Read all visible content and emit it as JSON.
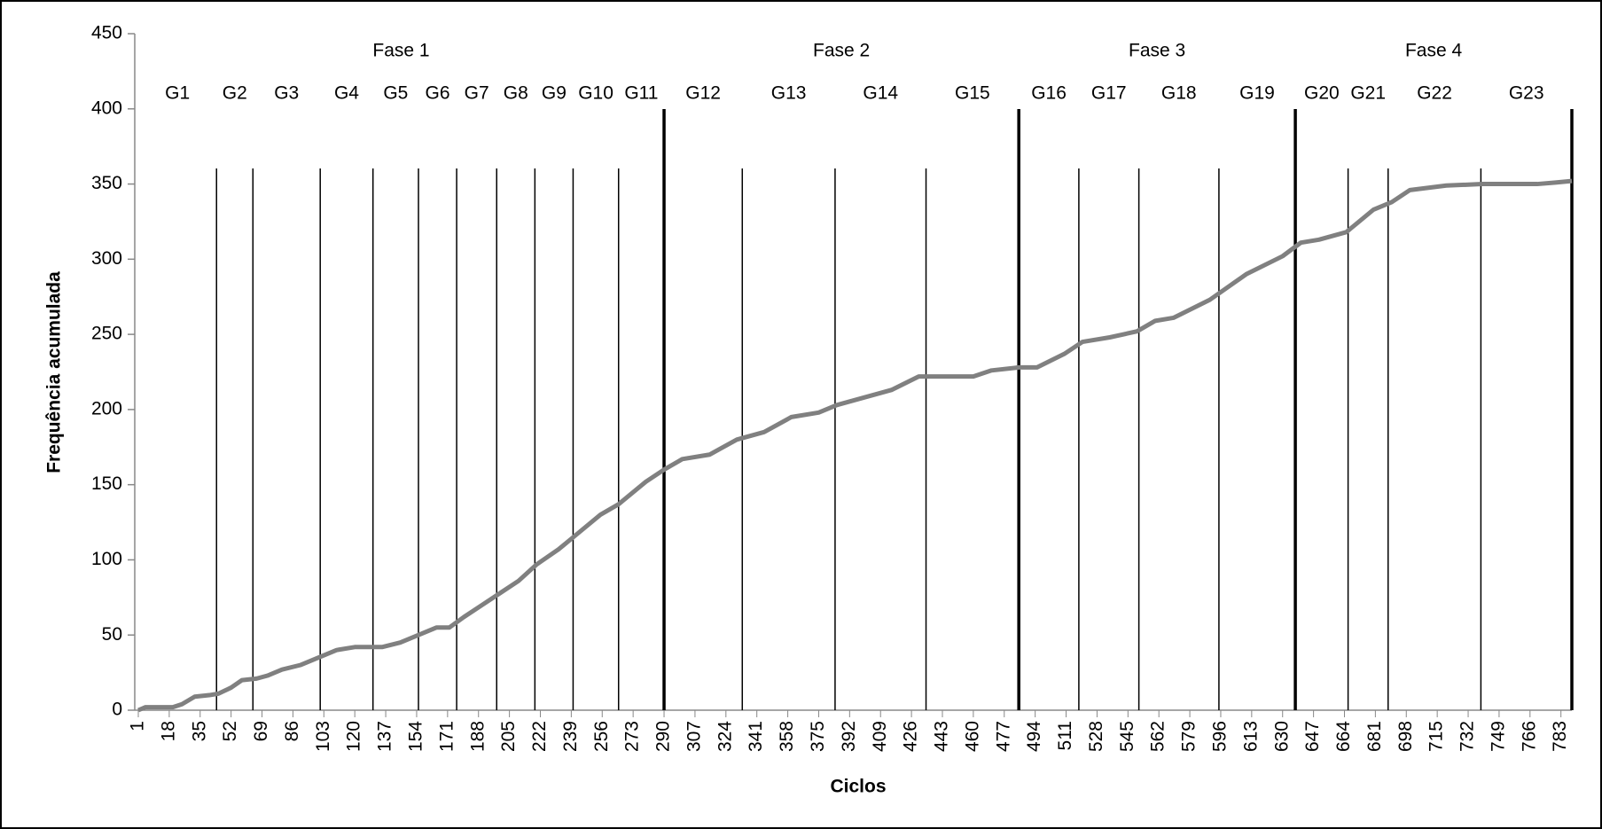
{
  "chart_data": {
    "type": "line",
    "y_label": "Frequência acumulada",
    "x_label": "Ciclos",
    "color": "#808080",
    "x": [
      1,
      5,
      20,
      25,
      32,
      40,
      45,
      52,
      58,
      66,
      72,
      80,
      90,
      100,
      110,
      120,
      135,
      145,
      155,
      165,
      172,
      180,
      190,
      200,
      210,
      220,
      232,
      242,
      255,
      265,
      280,
      290,
      300,
      315,
      330,
      345,
      360,
      375,
      385,
      400,
      415,
      430,
      445,
      460,
      470,
      485,
      495,
      510,
      520,
      535,
      550,
      560,
      570,
      590,
      610,
      630,
      640,
      650,
      665,
      680,
      690,
      700,
      720,
      740,
      770,
      780,
      789
    ],
    "values": [
      0,
      2,
      2,
      4,
      9,
      10,
      11,
      15,
      20,
      21,
      23,
      27,
      30,
      35,
      40,
      42,
      42,
      45,
      50,
      55,
      55,
      62,
      70,
      78,
      86,
      97,
      107,
      117,
      130,
      137,
      152,
      160,
      167,
      170,
      180,
      185,
      195,
      198,
      203,
      208,
      213,
      222,
      222,
      222,
      226,
      228,
      228,
      237,
      245,
      248,
      252,
      259,
      261,
      273,
      290,
      302,
      311,
      313,
      318,
      333,
      338,
      346,
      349,
      350,
      350,
      351,
      352
    ],
    "xlim": [
      1,
      789
    ],
    "xticks": [
      1,
      18,
      35,
      52,
      69,
      86,
      103,
      120,
      137,
      154,
      171,
      188,
      205,
      222,
      239,
      256,
      273,
      290,
      307,
      324,
      341,
      358,
      375,
      392,
      409,
      426,
      443,
      460,
      477,
      494,
      511,
      528,
      545,
      562,
      579,
      596,
      613,
      630,
      647,
      664,
      681,
      698,
      715,
      732,
      749,
      766,
      783
    ],
    "ylim": [
      0,
      450
    ],
    "yticks": [
      0,
      50,
      100,
      150,
      200,
      250,
      300,
      350,
      400,
      450
    ],
    "groups": [
      {
        "label": "G1",
        "end": 44
      },
      {
        "label": "G2",
        "end": 64
      },
      {
        "label": "G3",
        "end": 101
      },
      {
        "label": "G4",
        "end": 130
      },
      {
        "label": "G5",
        "end": 155
      },
      {
        "label": "G6",
        "end": 176
      },
      {
        "label": "G7",
        "end": 198
      },
      {
        "label": "G8",
        "end": 219
      },
      {
        "label": "G9",
        "end": 240
      },
      {
        "label": "G10",
        "end": 265
      },
      {
        "label": "G11",
        "end": 290
      },
      {
        "label": "G12",
        "end": 333
      },
      {
        "label": "G13",
        "end": 384
      },
      {
        "label": "G14",
        "end": 434
      },
      {
        "label": "G15",
        "end": 485
      },
      {
        "label": "G16",
        "end": 518
      },
      {
        "label": "G17",
        "end": 551
      },
      {
        "label": "G18",
        "end": 595
      },
      {
        "label": "G19",
        "end": 637
      },
      {
        "label": "G20",
        "end": 666
      },
      {
        "label": "G21",
        "end": 688
      },
      {
        "label": "G22",
        "end": 739
      },
      {
        "label": "G23",
        "end": 789
      }
    ],
    "phases": [
      {
        "label": "Fase 1",
        "end": 290
      },
      {
        "label": "Fase 2",
        "end": 485
      },
      {
        "label": "Fase 3",
        "end": 637
      },
      {
        "label": "Fase 4",
        "end": 789
      }
    ]
  }
}
